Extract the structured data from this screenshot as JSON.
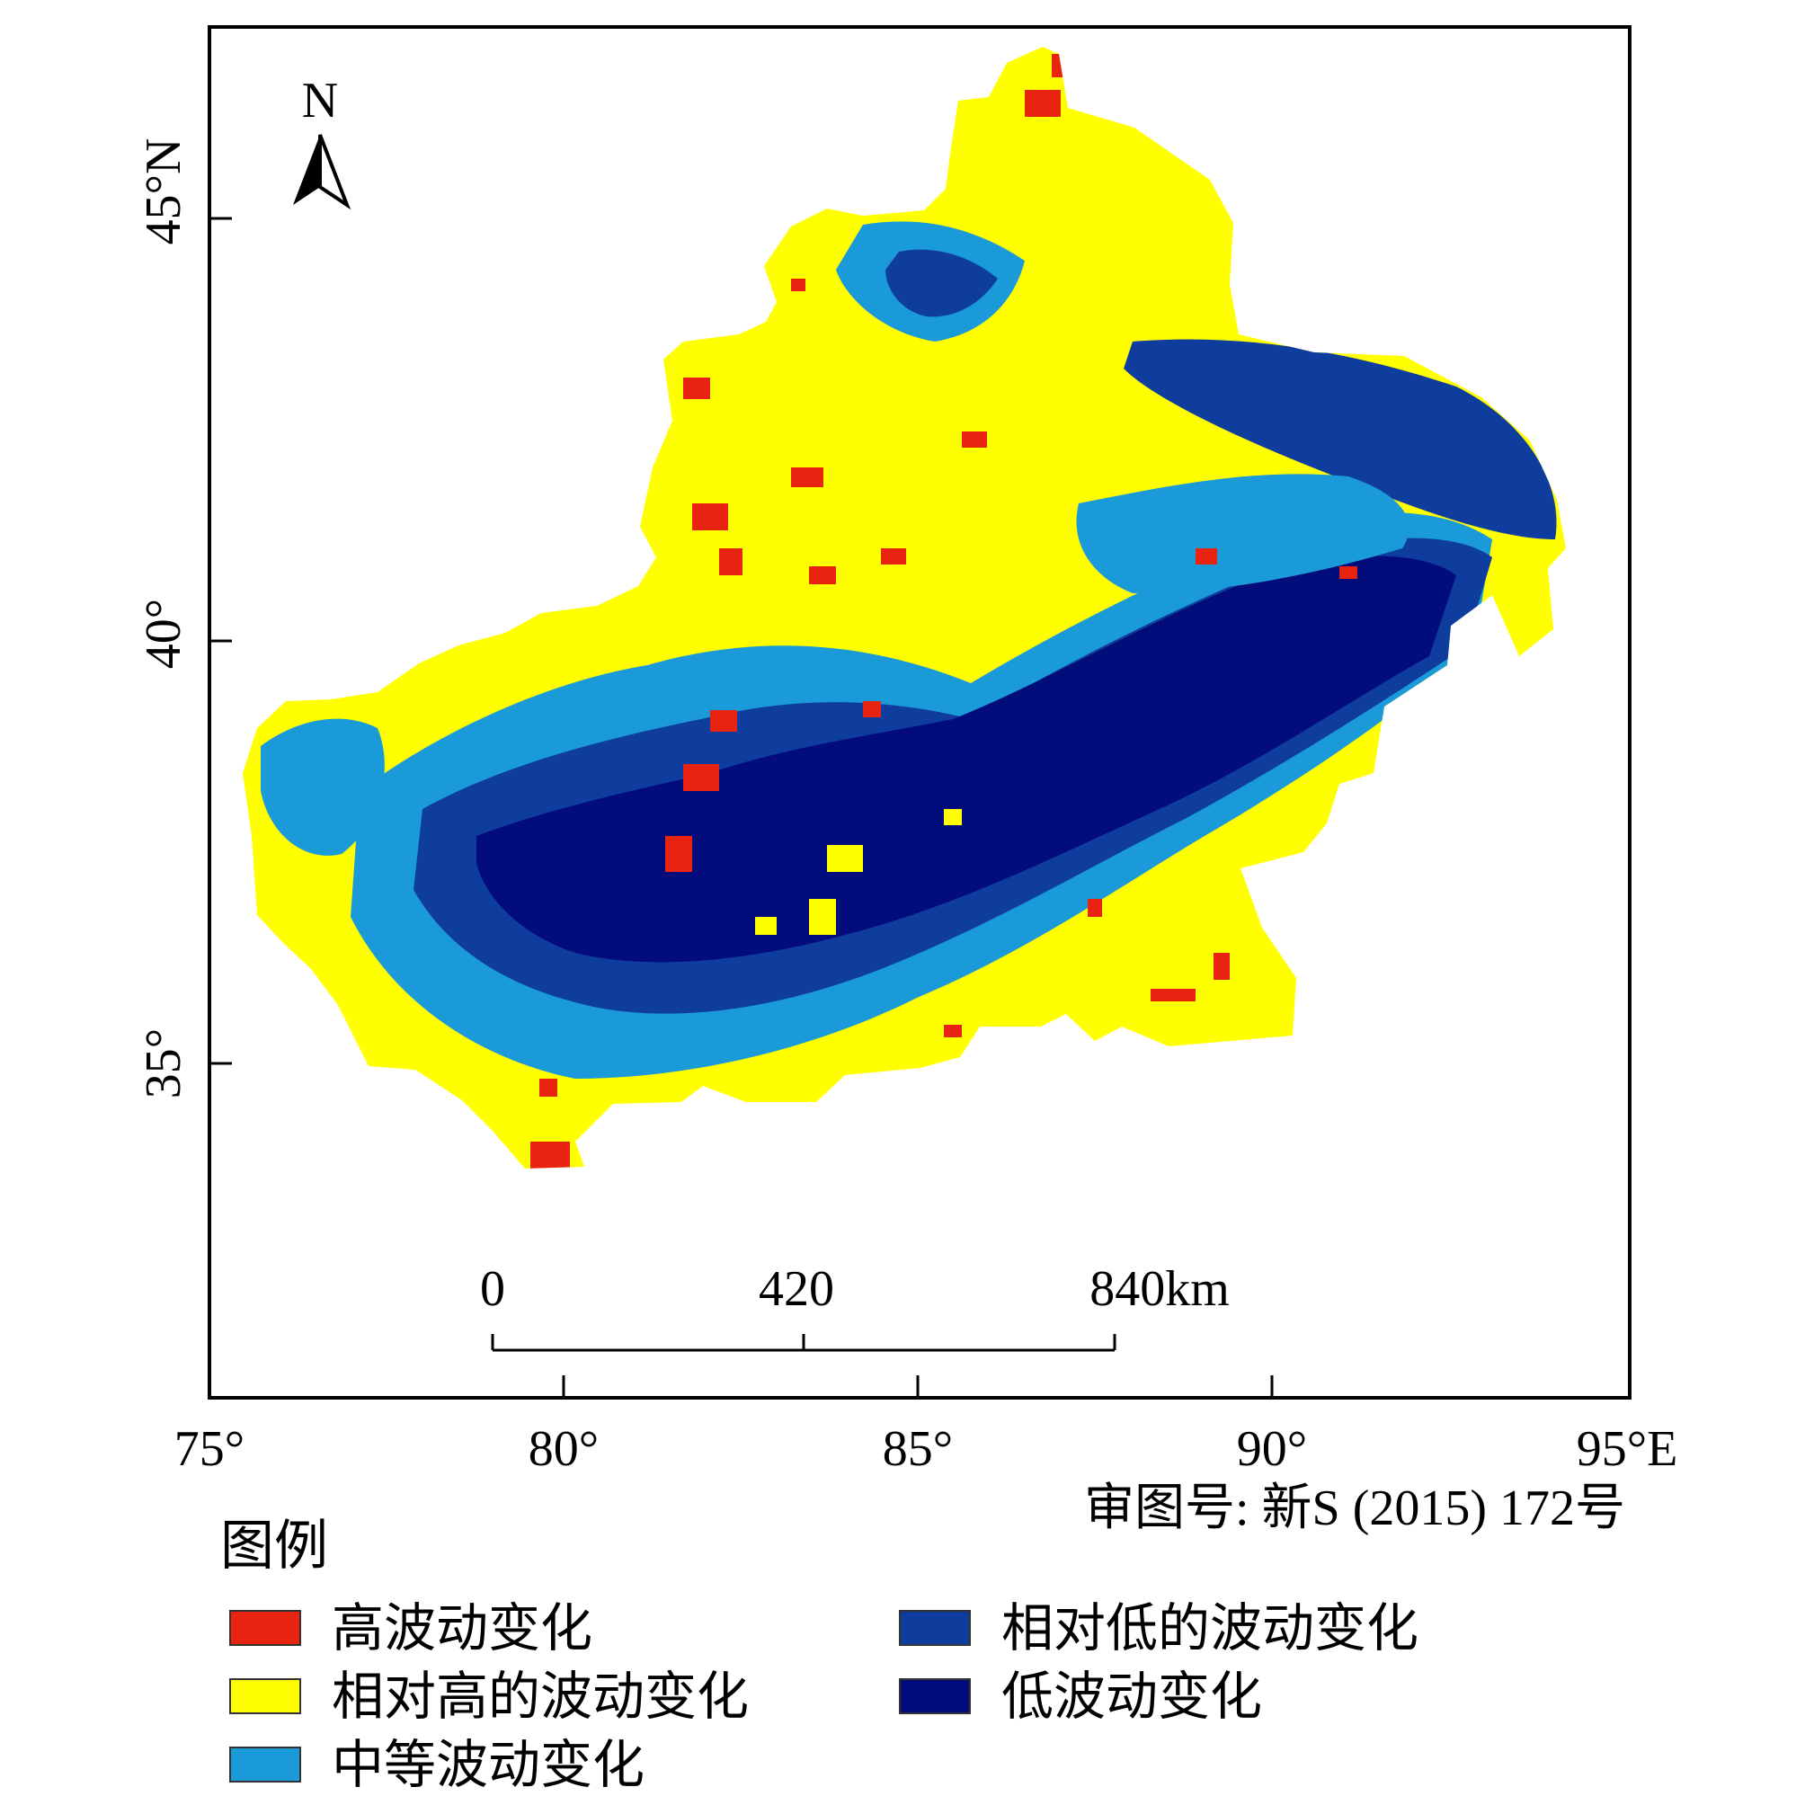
{
  "map": {
    "north_label": "N",
    "lat_labels": [
      "45°N",
      "40°",
      "35°"
    ],
    "lon_labels": [
      "75°",
      "80°",
      "85°",
      "90°",
      "95°E"
    ],
    "scale_labels": [
      "0",
      "420",
      "840km"
    ],
    "approval_number": "审图号: 新S (2015) 172号"
  },
  "legend": {
    "title": "图例",
    "items": [
      {
        "label": "高波动变化",
        "color": "#e8230f"
      },
      {
        "label": "相对高的波动变化",
        "color": "#ffff00"
      },
      {
        "label": "中等波动变化",
        "color": "#1a9ad8"
      },
      {
        "label": "相对低的波动变化",
        "color": "#0f3d9e"
      },
      {
        "label": "低波动变化",
        "color": "#020c7a"
      }
    ]
  }
}
